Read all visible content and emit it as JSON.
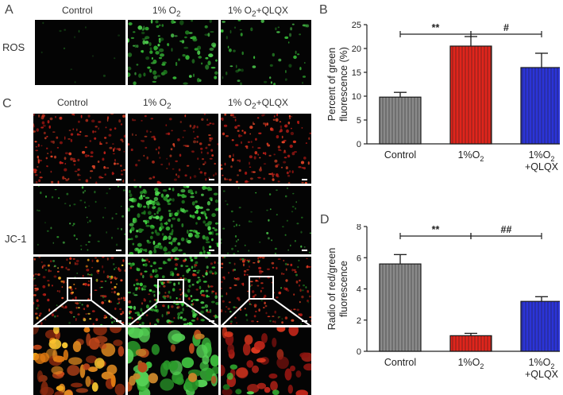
{
  "panels": {
    "a": {
      "letter": "A",
      "row_label": "ROS",
      "headers": [
        "Control",
        "1% O",
        "1% O",
        "+QLQX"
      ],
      "subscript": "2",
      "colors": [
        "#3ac53a"
      ]
    },
    "b": {
      "letter": "B"
    },
    "c": {
      "letter": "C",
      "row_label": "JC-1",
      "headers": [
        "Control",
        "1% O",
        "1% O",
        "+QLQX"
      ],
      "subscript": "2",
      "colors": {
        "red": "#d9261f",
        "green": "#3fd23f",
        "merge": "#f0a020"
      }
    },
    "d": {
      "letter": "D"
    }
  },
  "chart_data": [
    {
      "panel": "B",
      "type": "bar",
      "categories": [
        "Control",
        "1%O2",
        "1%O2 +QLQX"
      ],
      "category_lines": [
        [
          "Control"
        ],
        [
          "1%O",
          "2"
        ],
        [
          "1%O",
          "2",
          "+QLQX"
        ]
      ],
      "values": [
        9.8,
        20.5,
        16.0
      ],
      "errors": [
        1.0,
        2.0,
        3.0
      ],
      "colors": [
        "#8a8a8a",
        "#e0251c",
        "#2b34d8"
      ],
      "patterns": [
        "vertical-stripes",
        "vertical-stripes",
        "vertical-stripes"
      ],
      "ylabel": [
        "Percent of green",
        "fluorescence (%)"
      ],
      "ylim": [
        0,
        25
      ],
      "yticks": [
        "0",
        "5",
        "10",
        "15",
        "20",
        "25"
      ],
      "ytick_values": [
        0,
        5,
        10,
        15,
        20,
        25
      ],
      "significance": [
        {
          "from": 0,
          "to": 1,
          "label": "**"
        },
        {
          "from": 1,
          "to": 2,
          "label": "#"
        }
      ]
    },
    {
      "panel": "D",
      "type": "bar",
      "categories": [
        "Control",
        "1%O2",
        "1%O2 +QLQX"
      ],
      "category_lines": [
        [
          "Control"
        ],
        [
          "1%O",
          "2"
        ],
        [
          "1%O",
          "2",
          "+QLQX"
        ]
      ],
      "values": [
        5.6,
        1.0,
        3.2
      ],
      "errors": [
        0.6,
        0.15,
        0.3
      ],
      "colors": [
        "#8a8a8a",
        "#e0251c",
        "#2b34d8"
      ],
      "patterns": [
        "vertical-stripes",
        "vertical-stripes",
        "vertical-stripes"
      ],
      "ylabel": [
        "Radio of red/green",
        "fluorescence"
      ],
      "ylim": [
        0,
        8
      ],
      "yticks": [
        "0",
        "2",
        "4",
        "6",
        "8"
      ],
      "ytick_values": [
        0,
        2,
        4,
        6,
        8
      ],
      "significance": [
        {
          "from": 0,
          "to": 1,
          "label": "**"
        },
        {
          "from": 1,
          "to": 2,
          "label": "##"
        }
      ]
    }
  ]
}
